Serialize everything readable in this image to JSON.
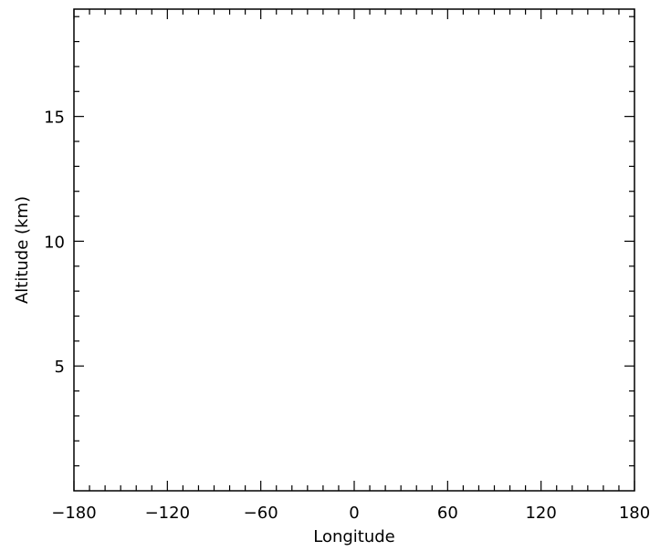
{
  "chart_data": {
    "type": "line",
    "title": "",
    "xlabel": "Longitude",
    "ylabel": "Altitude (km)",
    "xlim": [
      -180,
      180
    ],
    "ylim": [
      0,
      19.3
    ],
    "xticks": [
      -180,
      -120,
      -60,
      0,
      60,
      120,
      180
    ],
    "xtick_labels": [
      "−180",
      "−120",
      "−60",
      "0",
      "60",
      "120",
      "180"
    ],
    "x_minor_step": 10,
    "yticks": [
      5,
      10,
      15
    ],
    "ytick_labels": [
      "5",
      "10",
      "15"
    ],
    "y_minor_step": 1,
    "grid": false,
    "series": [],
    "colors": {
      "axis": "#000000",
      "background": "#ffffff"
    }
  }
}
